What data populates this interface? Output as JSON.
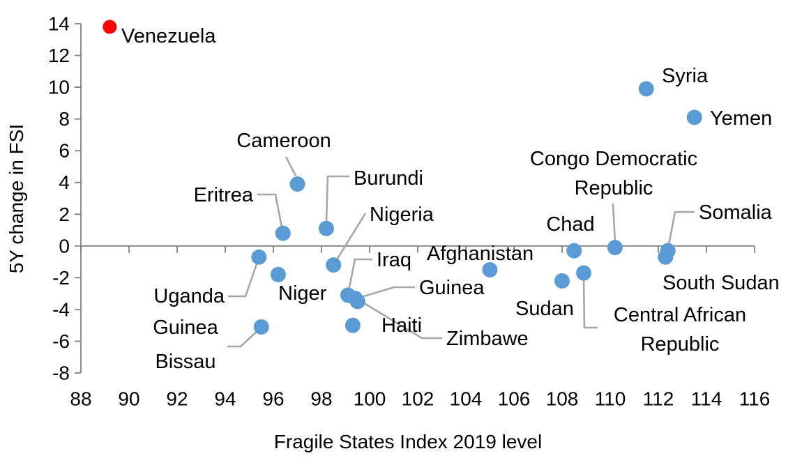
{
  "colors": {
    "marker": "#5B9BD5",
    "highlight": "#FF0000",
    "leader": "#A6A6A6",
    "axis": "#808080",
    "text": "#000000"
  },
  "chart_data": {
    "type": "scatter",
    "title": "",
    "xlabel": "Fragile States Index 2019 level",
    "ylabel": "5Y change in FSI",
    "xlim": [
      88,
      116
    ],
    "ylim": [
      -8,
      14
    ],
    "x_ticks": [
      88,
      90,
      92,
      94,
      96,
      98,
      100,
      102,
      104,
      106,
      108,
      110,
      112,
      114,
      116
    ],
    "y_ticks": [
      -8,
      -6,
      -4,
      -2,
      0,
      2,
      4,
      6,
      8,
      10,
      12,
      14
    ],
    "grid": false,
    "legend": "none",
    "points": [
      {
        "label": "Venezuela",
        "x": 89.2,
        "y": 13.8,
        "highlight": true
      },
      {
        "label": "Cameroon",
        "x": 97.0,
        "y": 3.9,
        "highlight": false
      },
      {
        "label": "Eritrea",
        "x": 96.4,
        "y": 0.8,
        "highlight": false
      },
      {
        "label": "Burundi",
        "x": 98.2,
        "y": 1.1,
        "highlight": false
      },
      {
        "label": "Nigeria",
        "x": 98.5,
        "y": -1.2,
        "highlight": false
      },
      {
        "label": "Uganda",
        "x": 95.4,
        "y": -0.7,
        "highlight": false
      },
      {
        "label": "Niger",
        "x": 96.2,
        "y": -1.8,
        "highlight": false
      },
      {
        "label": "Guinea Bissau",
        "x": 95.5,
        "y": -5.1,
        "highlight": false
      },
      {
        "label": "Haiti",
        "x": 99.3,
        "y": -5.0,
        "highlight": false
      },
      {
        "label": "Iraq",
        "x": 99.1,
        "y": -3.1,
        "highlight": false
      },
      {
        "label": "Guinea",
        "x": 99.4,
        "y": -3.3,
        "highlight": false
      },
      {
        "label": "Zimbawe",
        "x": 99.5,
        "y": -3.5,
        "highlight": false
      },
      {
        "label": "Afghanistan",
        "x": 105.0,
        "y": -1.5,
        "highlight": false
      },
      {
        "label": "Sudan",
        "x": 108.0,
        "y": -2.2,
        "highlight": false
      },
      {
        "label": "Chad",
        "x": 108.5,
        "y": -0.3,
        "highlight": false
      },
      {
        "label": "Central African Republic",
        "x": 108.9,
        "y": -1.7,
        "highlight": false
      },
      {
        "label": "Congo Democratic Republic",
        "x": 110.2,
        "y": -0.1,
        "highlight": false
      },
      {
        "label": "Somalia",
        "x": 112.4,
        "y": -0.3,
        "highlight": false
      },
      {
        "label": "South Sudan",
        "x": 112.3,
        "y": -0.7,
        "highlight": false
      },
      {
        "label": "Syria",
        "x": 111.5,
        "y": 9.9,
        "highlight": false
      },
      {
        "label": "Yemen",
        "x": 113.5,
        "y": 8.1,
        "highlight": false
      }
    ]
  }
}
